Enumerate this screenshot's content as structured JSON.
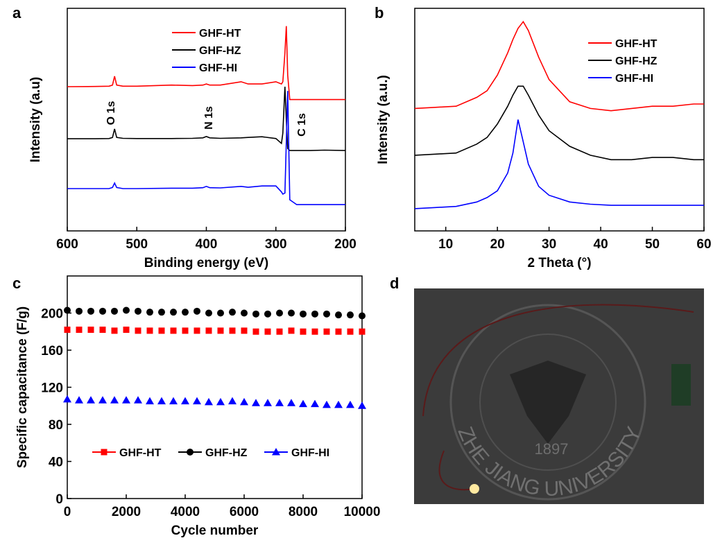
{
  "chart_data": [
    {
      "type": "line",
      "panel_label": "a",
      "x_label": "Binding energy (eV)",
      "y_label": "Intensity (a.u)",
      "xlim": [
        600,
        200
      ],
      "xticks": [
        600,
        500,
        400,
        300,
        200
      ],
      "ylim": [
        0,
        100
      ],
      "legend": "top",
      "annotations": [
        "O 1s",
        "N 1s",
        "C 1s"
      ],
      "x": [
        600,
        560,
        540,
        535,
        532,
        529,
        520,
        500,
        450,
        420,
        405,
        400,
        395,
        380,
        350,
        340,
        320,
        300,
        292,
        290,
        287,
        285,
        283,
        280,
        270,
        250,
        230,
        200
      ],
      "series": [
        {
          "name": "GHF-HT",
          "color": "#ff0000",
          "values": [
            64.8,
            64.9,
            65,
            65.5,
            69.5,
            65.5,
            65,
            65,
            65.5,
            65.3,
            65.5,
            66,
            65.5,
            65.5,
            67,
            66,
            66,
            67,
            66,
            67,
            80,
            92,
            70,
            59,
            59,
            59,
            59,
            59
          ]
        },
        {
          "name": "GHF-HZ",
          "color": "#000000",
          "values": [
            41.4,
            41.4,
            41.5,
            42,
            45.8,
            42,
            41.6,
            41.5,
            41.5,
            41.6,
            41.8,
            42.4,
            41.8,
            41.6,
            41.8,
            42,
            42.3,
            41.5,
            39.3,
            44,
            64.8,
            50,
            37,
            36.1,
            36.1,
            36.1,
            36.3,
            36.1
          ]
        },
        {
          "name": "GHF-HI",
          "color": "#0000ff",
          "values": [
            19,
            19,
            19,
            19.5,
            21.5,
            19.5,
            19,
            19,
            19.2,
            19.2,
            19.4,
            20,
            19.4,
            19.3,
            20,
            19.6,
            20.2,
            20.2,
            17.5,
            16.5,
            17,
            40,
            62.9,
            14,
            11.8,
            11.8,
            11.8,
            11.8
          ]
        }
      ]
    },
    {
      "type": "line",
      "panel_label": "b",
      "x_label": "2 Theta (°)",
      "y_label": "Intensity (a.u.)",
      "xlim": [
        4,
        60
      ],
      "xticks": [
        10,
        20,
        30,
        40,
        50,
        60
      ],
      "ylim": [
        0,
        100
      ],
      "legend": "right",
      "x": [
        4,
        8,
        12,
        16,
        18,
        20,
        22,
        23,
        24,
        25,
        26,
        28,
        30,
        34,
        38,
        42,
        46,
        50,
        54,
        58,
        60
      ],
      "series": [
        {
          "name": "GHF-HT",
          "color": "#ff0000",
          "values": [
            55,
            55.5,
            56,
            60,
            63,
            70,
            80,
            86,
            91,
            94,
            90,
            78,
            68,
            58,
            55,
            54,
            55,
            56,
            56,
            57,
            57
          ]
        },
        {
          "name": "GHF-HZ",
          "color": "#000000",
          "values": [
            34,
            34.5,
            35,
            39,
            42,
            48,
            56,
            61,
            65,
            65,
            61,
            52,
            45,
            38,
            34,
            32,
            32,
            33,
            33,
            32,
            32
          ]
        },
        {
          "name": "GHF-HI",
          "color": "#0000ff",
          "values": [
            10,
            10.5,
            11,
            13,
            15,
            18,
            26,
            35,
            50,
            40,
            30,
            20,
            16,
            13,
            12,
            11.5,
            11.5,
            11.5,
            11.5,
            11.5,
            11.5
          ]
        }
      ]
    },
    {
      "type": "scatter",
      "panel_label": "c",
      "x_label": "Cycle number",
      "y_label": "Specific capacitance (F/g)",
      "xlim": [
        0,
        10000
      ],
      "xticks": [
        0,
        2000,
        4000,
        6000,
        8000,
        10000
      ],
      "ylim": [
        0,
        240
      ],
      "yticks": [
        0,
        40,
        80,
        120,
        160,
        200
      ],
      "legend": "bottom",
      "x": [
        0,
        400,
        800,
        1200,
        1600,
        2000,
        2400,
        2800,
        3200,
        3600,
        4000,
        4400,
        4800,
        5200,
        5600,
        6000,
        6400,
        6800,
        7200,
        7600,
        8000,
        8400,
        8800,
        9200,
        9600,
        10000
      ],
      "series": [
        {
          "name": "GHF-HT",
          "color": "#ff0000",
          "marker": "square",
          "values": [
            182,
            182,
            182,
            182,
            181,
            182,
            181,
            181,
            181,
            181,
            181,
            181,
            181,
            181,
            181,
            181,
            180,
            180,
            180,
            181,
            180,
            180,
            180,
            180,
            180,
            180
          ]
        },
        {
          "name": "GHF-HZ",
          "color": "#000000",
          "marker": "circle",
          "values": [
            203,
            202,
            202,
            202,
            202,
            203,
            202,
            201,
            201,
            201,
            201,
            202,
            200,
            200,
            201,
            200,
            199,
            199,
            200,
            200,
            199,
            199,
            199,
            198,
            198,
            197
          ]
        },
        {
          "name": "GHF-HI",
          "color": "#0000ff",
          "marker": "triangle",
          "values": [
            107,
            106,
            106,
            106,
            106,
            106,
            106,
            105,
            105,
            105,
            105,
            105,
            104,
            104,
            105,
            104,
            103,
            103,
            103,
            103,
            102,
            102,
            101,
            101,
            101,
            100
          ]
        }
      ]
    }
  ],
  "photo": {
    "panel_label": "d",
    "year": "1897",
    "university": "ZHE JIANG UNIVERSITY"
  }
}
